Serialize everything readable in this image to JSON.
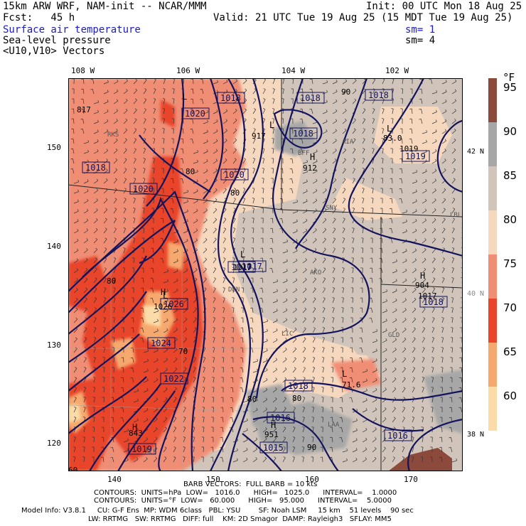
{
  "header": {
    "line1_left": "15km ARW WRF, NAM-init -- NCAR/MMM",
    "line1_right": "Init: 00 UTC Mon 18 Aug 25",
    "line2_left": "Fcst:   45 h",
    "line2_right": "Valid: 21 UTC Tue 19 Aug 25 (15 MDT Tue 19 Aug 25)",
    "field1": "Surface air temperature",
    "field1_sm": "sm= 1",
    "field2": "Sea-level pressure",
    "field2_sm": "sm= 4",
    "field3": "<U10,V10> Vectors"
  },
  "top_axis": [
    "108 W",
    "106 W",
    "104 W",
    "102 W"
  ],
  "bottom_axis": [
    "140",
    "150",
    "160",
    "170"
  ],
  "left_axis": [
    "150",
    "140",
    "130",
    "120"
  ],
  "right_lat": [
    "42 N",
    "40 N",
    "38 N"
  ],
  "colorbar": {
    "unit": "°F",
    "labels": [
      "95",
      "90",
      "85",
      "80",
      "75",
      "70",
      "65",
      "60"
    ],
    "colors": [
      "#8b4a3c",
      "#a7a7a7",
      "#d1c5bb",
      "#f6d8bf",
      "#f08e74",
      "#e8452a",
      "#f6a96e",
      "#fbdca8"
    ]
  },
  "map_labels": {
    "cities": [
      "RKS",
      "DEN",
      "AKO",
      "LIC",
      "GLD",
      "LAA",
      "ALS",
      "LBL",
      "AIA",
      "SNY",
      "BFF"
    ],
    "pressure_boxes": [
      "1018",
      "1018",
      "1018",
      "1018",
      "1020",
      "1020",
      "1020",
      "1018",
      "1017",
      "1026",
      "1024",
      "1022",
      "1018",
      "1016",
      "1015",
      "1019",
      "1016",
      "1017",
      "1019",
      "1018"
    ],
    "lows": [
      "L",
      "L",
      "L",
      "L",
      "L",
      "L"
    ],
    "highs": [
      "H",
      "H",
      "H",
      "H",
      "H"
    ],
    "values": [
      "817",
      "917",
      "912",
      "83.0",
      "1019",
      "1017",
      "904",
      "1017",
      "71.6",
      "951",
      "843",
      "80",
      "80",
      "90",
      "60",
      "80",
      "80",
      "70",
      "80",
      "90",
      "1026"
    ]
  },
  "footer": {
    "barb": "BARB VECTORS:  FULL BARB = 10 kts",
    "contours1": "CONTOURS:  UNITS=hPa  LOW=   1016.0      HIGH=   1025.0      INTERVAL=    1.0000",
    "contours2": "CONTOURS:  UNITS=°F  LOW=   60.000      HIGH=   95.000      INTERVAL=    5.0000",
    "model1": "Model Info: V3.8.1     CU: G-F Ens  MP: WDM 6class   PBL: YSU        SF: Noah LSM     15 km    51 levels    90 sec",
    "model2": "LW: RRTMG   SW: RRTMG   DIFF: full    KM: 2D Smagor  DAMP: Rayleigh3   SFLAY: MM5"
  }
}
